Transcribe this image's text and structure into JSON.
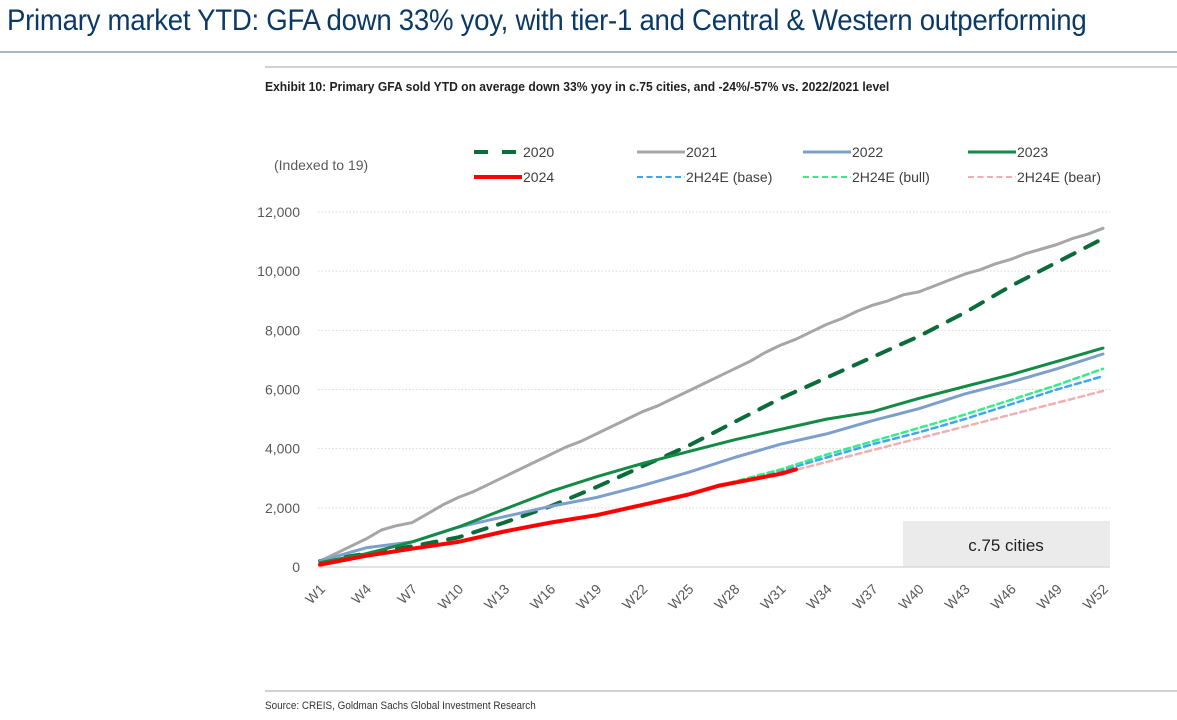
{
  "header": {
    "title": "Primary market YTD: GFA down 33% yoy, with tier-1 and Central & Western outperforming"
  },
  "exhibit": {
    "title": "Exhibit 10: Primary GFA sold YTD on average down 33% yoy in c.75 cities, and -24%/-57% vs. 2022/2021 level",
    "source": "Source: CREIS, Goldman Sachs Global Investment Research"
  },
  "chart_data": {
    "type": "line",
    "title": "Primary GFA sold YTD on average down 33% yoy in c.75 cities, and -24%/-57% vs. 2022/2021 level",
    "unit_label": "(Indexed to 19)",
    "annotation": "c.75 cities",
    "xlabel": "",
    "ylabel": "",
    "ylim": [
      0,
      12000
    ],
    "yticks": [
      0,
      2000,
      4000,
      6000,
      8000,
      10000,
      12000
    ],
    "ytick_labels": [
      "0",
      "2,000",
      "4,000",
      "6,000",
      "8,000",
      "10,000",
      "12,000"
    ],
    "x_range": [
      1,
      52
    ],
    "xticks": [
      1,
      4,
      7,
      10,
      13,
      16,
      19,
      22,
      25,
      28,
      31,
      34,
      37,
      40,
      43,
      46,
      49,
      52
    ],
    "xtick_labels": [
      "W1",
      "W4",
      "W7",
      "W10",
      "W13",
      "W16",
      "W19",
      "W22",
      "W25",
      "W28",
      "W31",
      "W34",
      "W37",
      "W40",
      "W43",
      "W46",
      "W49",
      "W52"
    ],
    "grid": true,
    "legend_position": "top",
    "colors": {
      "2020": "#0b6b3a",
      "2021": "#a6a6a6",
      "2022": "#7d9fce",
      "2023": "#138a45",
      "2024": "#ff0000",
      "base": "#3fa6f5",
      "bull": "#33ee88",
      "bear": "#eeb0b0"
    },
    "series": [
      {
        "name": "2020",
        "style": "dashed-thick",
        "x": [
          1,
          4,
          7,
          10,
          13,
          16,
          19,
          22,
          25,
          28,
          31,
          34,
          37,
          40,
          43,
          46,
          49,
          52
        ],
        "values": [
          200,
          450,
          700,
          1000,
          1500,
          2050,
          2700,
          3400,
          4100,
          4900,
          5700,
          6400,
          7100,
          7800,
          8600,
          9500,
          10300,
          11100
        ]
      },
      {
        "name": "2021",
        "style": "solid",
        "x": [
          1,
          2,
          3,
          4,
          5,
          6,
          7,
          8,
          9,
          10,
          11,
          12,
          13,
          14,
          15,
          16,
          17,
          18,
          19,
          20,
          21,
          22,
          23,
          24,
          25,
          26,
          27,
          28,
          29,
          30,
          31,
          32,
          33,
          34,
          35,
          36,
          37,
          38,
          39,
          40,
          41,
          42,
          43,
          44,
          45,
          46,
          47,
          48,
          49,
          50,
          51,
          52
        ],
        "values": [
          200,
          450,
          700,
          950,
          1250,
          1400,
          1500,
          1800,
          2100,
          2350,
          2550,
          2800,
          3050,
          3300,
          3550,
          3800,
          4050,
          4250,
          4500,
          4750,
          5000,
          5250,
          5450,
          5700,
          5950,
          6200,
          6450,
          6700,
          6950,
          7250,
          7500,
          7700,
          7950,
          8200,
          8400,
          8650,
          8850,
          9000,
          9200,
          9300,
          9500,
          9700,
          9900,
          10050,
          10250,
          10400,
          10600,
          10750,
          10900,
          11100,
          11250,
          11450
        ]
      },
      {
        "name": "2022",
        "style": "solid",
        "x": [
          1,
          4,
          7,
          10,
          13,
          16,
          19,
          22,
          25,
          28,
          31,
          34,
          37,
          40,
          43,
          46,
          49,
          52
        ],
        "values": [
          200,
          650,
          850,
          1350,
          1700,
          2050,
          2350,
          2750,
          3200,
          3700,
          4150,
          4500,
          4950,
          5350,
          5850,
          6250,
          6700,
          7200
        ]
      },
      {
        "name": "2023",
        "style": "solid",
        "x": [
          1,
          4,
          7,
          10,
          13,
          16,
          19,
          22,
          25,
          28,
          31,
          34,
          37,
          40,
          43,
          46,
          49,
          52
        ],
        "values": [
          150,
          450,
          850,
          1350,
          1950,
          2550,
          3050,
          3500,
          3900,
          4300,
          4650,
          5000,
          5250,
          5700,
          6100,
          6500,
          6950,
          7400
        ]
      },
      {
        "name": "2024",
        "style": "solid-thick",
        "x": [
          1,
          4,
          7,
          10,
          13,
          16,
          19,
          22,
          25,
          27,
          28,
          31,
          32
        ],
        "values": [
          80,
          380,
          620,
          850,
          1200,
          1500,
          1750,
          2100,
          2450,
          2750,
          2850,
          3150,
          3300
        ]
      },
      {
        "name": "2H24E (base)",
        "style": "dashed",
        "x": [
          27,
          31,
          34,
          37,
          40,
          43,
          46,
          49,
          52
        ],
        "values": [
          2750,
          3250,
          3700,
          4150,
          4550,
          5000,
          5500,
          6000,
          6450
        ]
      },
      {
        "name": "2H24E (bull)",
        "style": "dashed",
        "x": [
          27,
          31,
          34,
          37,
          40,
          43,
          46,
          49,
          52
        ],
        "values": [
          2750,
          3300,
          3800,
          4250,
          4700,
          5150,
          5650,
          6150,
          6700
        ]
      },
      {
        "name": "2H24E (bear)",
        "style": "dashed",
        "x": [
          27,
          31,
          34,
          37,
          40,
          43,
          46,
          49,
          52
        ],
        "values": [
          2750,
          3150,
          3550,
          3950,
          4350,
          4750,
          5150,
          5550,
          5950
        ]
      }
    ],
    "legend": [
      {
        "name": "2020",
        "key": "2020",
        "style": "dashed-thick"
      },
      {
        "name": "2021",
        "key": "2021",
        "style": "solid"
      },
      {
        "name": "2022",
        "key": "2022",
        "style": "solid"
      },
      {
        "name": "2023",
        "key": "2023",
        "style": "solid"
      },
      {
        "name": "2024",
        "key": "2024",
        "style": "solid-thick"
      },
      {
        "name": "2H24E (base)",
        "key": "base",
        "style": "dashed"
      },
      {
        "name": "2H24E (bull)",
        "key": "bull",
        "style": "dashed"
      },
      {
        "name": "2H24E (bear)",
        "key": "bear",
        "style": "dashed"
      }
    ]
  }
}
